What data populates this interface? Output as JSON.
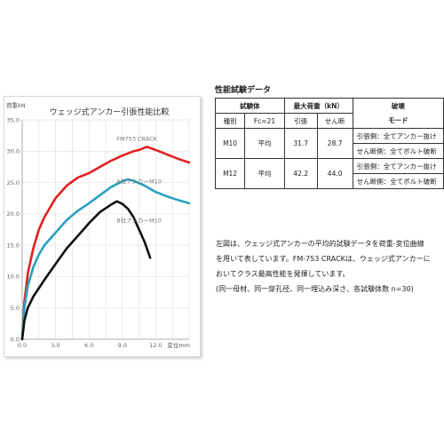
{
  "chart_data": {
    "type": "line",
    "title": "ウェッジ式アンカー引張性能比較",
    "ylabel": "荷重kN",
    "xlabel": "変位mm",
    "xlim": [
      0,
      15
    ],
    "ylim": [
      0,
      35
    ],
    "x_ticks": [
      "0.0",
      "3.0",
      "6.0",
      "9.0",
      "12.0"
    ],
    "y_ticks": [
      "0.0",
      "5.0",
      "10.0",
      "15.0",
      "20.0",
      "25.0",
      "30.0",
      "35.0"
    ],
    "grid": true,
    "series": [
      {
        "name": "FM753 CRACK",
        "color": "#e02020",
        "x": [
          0,
          0.2,
          0.5,
          1,
          1.5,
          2,
          3,
          4,
          5,
          6,
          7,
          8,
          9,
          10,
          10.5,
          11.2,
          12,
          13,
          14,
          15
        ],
        "y": [
          0,
          6,
          10.5,
          14.5,
          17.5,
          19.5,
          22.5,
          24.5,
          25.8,
          26.5,
          27.5,
          28.5,
          29.3,
          30,
          30.2,
          30.7,
          30.2,
          29.5,
          28.8,
          28.2
        ]
      },
      {
        "name": "A社アンカーM10",
        "color": "#2aa0c0",
        "x": [
          0,
          0.2,
          0.5,
          1,
          1.5,
          2,
          3,
          4,
          5,
          6,
          7,
          8,
          9,
          9.5,
          10,
          11,
          12,
          13,
          14,
          15
        ],
        "y": [
          0,
          5,
          8.5,
          11.5,
          13.5,
          15,
          17,
          19,
          20.5,
          21.7,
          23,
          24.3,
          25.2,
          25.5,
          25.3,
          24.5,
          23.5,
          22.8,
          22.2,
          21.7
        ]
      },
      {
        "name": "B社アンカーM10",
        "color": "#111111",
        "x": [
          0,
          0.2,
          0.5,
          1,
          2,
          3,
          4,
          5,
          6,
          7,
          8,
          8.5,
          9,
          9.5,
          10,
          10.5,
          11,
          11.5
        ],
        "y": [
          0,
          3,
          5,
          6.8,
          9.5,
          12,
          14.5,
          16.5,
          18.5,
          20.3,
          21.5,
          22,
          21.6,
          20.8,
          19.5,
          17.5,
          15.5,
          13
        ]
      }
    ]
  },
  "table": {
    "title": "性能試験データ",
    "headers": {
      "specimen": "試験体",
      "max_load": "最大荷重（kN）",
      "failure": "破壊",
      "type": "種別",
      "fc": "Fc=21",
      "tension": "引張",
      "shear": "せん断",
      "mode": "モード"
    },
    "rows": [
      {
        "size": "M10",
        "avg": "平均",
        "tension": "31.7",
        "shear": "28.7",
        "mode_tension": "引張側：全てアンカー抜け",
        "mode_shear": "せん断側：全てボルト破断"
      },
      {
        "size": "M12",
        "avg": "平均",
        "tension": "42.2",
        "shear": "44.0",
        "mode_tension": "引張側：全てアンカー抜け",
        "mode_shear": "せん断側：全てボルト破断"
      }
    ]
  },
  "description": {
    "line1": "左図は、ウェッジ式アンカーの平均的試験データを荷重-変位曲線",
    "line2": "を用いて表しています。FM-753 CRACKは、ウェッジ式アンカーに",
    "line3": "おいてクラス最高性能を発揮しています。",
    "line4": "(同一母材、同一穿孔径、同一埋込み深さ、各試験体数 n=30)"
  }
}
